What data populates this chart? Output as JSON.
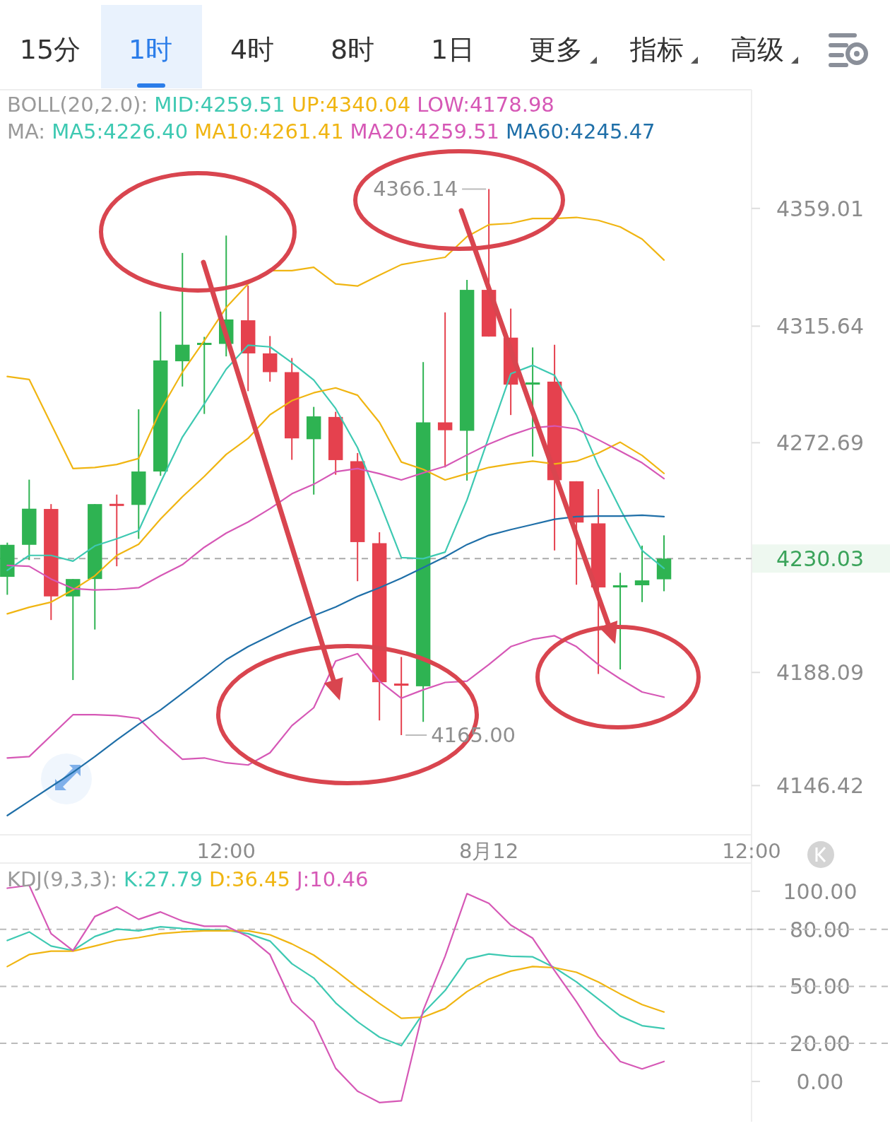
{
  "chart_data": [
    {
      "type": "other",
      "annotations": [
        "15分",
        "1时",
        "4时",
        "8时",
        "1日",
        "更多",
        "指标",
        "高级"
      ]
    },
    {
      "type": "candlestick",
      "x": [
        "--08-11T02:00",
        "--08-11T03:00",
        "--08-11T04:00",
        "--08-11T05:00",
        "--08-11T06:00",
        "--08-11T07:00",
        "--08-11T08:00",
        "--08-11T09:00",
        "--08-11T10:00",
        "--08-11T11:00",
        "--08-11T12:00",
        "--08-11T13:00",
        "--08-11T14:00",
        "--08-11T15:00",
        "--08-11T16:00",
        "--08-11T17:00",
        "--08-11T18:00",
        "--08-11T19:00",
        "--08-11T20:00",
        "--08-11T21:00",
        "--08-11T22:00",
        "--08-11T23:00",
        "--08-12T00:00",
        "--08-12T01:00",
        "--08-12T02:00",
        "--08-12T03:00",
        "--08-12T04:00",
        "--08-12T05:00",
        "--08-12T06:00",
        "--08-12T07:00",
        "--08-12T08:00"
      ],
      "ohlc": [
        [
          4223.3,
          4235.9,
          4216.7,
          4235.1
        ],
        [
          4235.1,
          4259.1,
          4229.5,
          4248.4
        ],
        [
          4248.3,
          4250.1,
          4207.4,
          4216.1
        ],
        [
          4216.1,
          4222.5,
          4185.3,
          4222.5
        ],
        [
          4222.5,
          4250.1,
          4203.9,
          4250.1
        ],
        [
          4250.0,
          4253.6,
          4227.2,
          4249.6
        ],
        [
          4249.8,
          4285.0,
          4237.3,
          4262.1
        ],
        [
          4262.1,
          4321.0,
          4260.5,
          4303.0
        ],
        [
          4302.7,
          4342.6,
          4293.4,
          4308.8
        ],
        [
          4308.9,
          4311.7,
          4283.3,
          4309.3
        ],
        [
          4309.1,
          4349.0,
          4304.5,
          4318.1
        ],
        [
          4317.8,
          4330.6,
          4291.7,
          4305.6
        ],
        [
          4305.6,
          4312.0,
          4295.2,
          4298.7
        ],
        [
          4298.7,
          4303.9,
          4266.4,
          4274.3
        ],
        [
          4274.0,
          4285.9,
          4253.6,
          4282.4
        ],
        [
          4282.2,
          4284.1,
          4260.9,
          4266.3
        ],
        [
          4265.9,
          4268.9,
          4221.7,
          4236.1
        ],
        [
          4235.7,
          4239.7,
          4170.4,
          4184.5
        ],
        [
          4184.0,
          4193.8,
          4165.0,
          4183.2
        ],
        [
          4183.0,
          4302.4,
          4169.9,
          4280.2
        ],
        [
          4280.2,
          4320.7,
          4263.6,
          4277.3
        ],
        [
          4277.1,
          4332.7,
          4258.7,
          4329.0
        ],
        [
          4329.0,
          4366.14,
          4311.8,
          4311.8
        ],
        [
          4311.4,
          4322.1,
          4282.9,
          4294.1
        ],
        [
          4294.1,
          4307.8,
          4267.6,
          4294.9
        ],
        [
          4295.2,
          4308.8,
          4233.0,
          4258.9
        ],
        [
          4258.5,
          4258.5,
          4220.4,
          4243.3
        ],
        [
          4243.0,
          4255.6,
          4187.5,
          4219.4
        ],
        [
          4219.4,
          4224.8,
          4189.2,
          4220.2
        ],
        [
          4220.2,
          4234.8,
          4214.0,
          4222.0
        ],
        [
          4222.4,
          4238.6,
          4218.0,
          4230.03
        ]
      ],
      "colors": [
        "#2eb352",
        "#2eb352",
        "#e5414e",
        "#2eb352",
        "#2eb352",
        "#e5414e",
        "#2eb352",
        "#2eb352",
        "#2eb352",
        "#2eb352",
        "#2eb352",
        "#e5414e",
        "#e5414e",
        "#e5414e",
        "#2eb352",
        "#e5414e",
        "#e5414e",
        "#e5414e",
        "#e5414e",
        "#2eb352",
        "#e5414e",
        "#2eb352",
        "#e5414e",
        "#e5414e",
        "#2eb352",
        "#e5414e",
        "#e5414e",
        "#e5414e",
        "#2eb352",
        "#2eb352",
        "#2eb352"
      ],
      "series": [
        {
          "type": "line",
          "color": "#f0b512",
          "values": [
            4297.1,
            4296.0,
            4279.6,
            4263.2,
            4263.6,
            4264.7,
            4266.9,
            4284.7,
            4298.7,
            4310.3,
            4322.5,
            4331.2,
            4336.1,
            4336.1,
            4337.3,
            4331.2,
            4330.4,
            4334.4,
            4338.3,
            4339.7,
            4341.0,
            4348.6,
            4353.0,
            4353.5,
            4355.3,
            4355.3,
            4355.7,
            4354.6,
            4352.2,
            4347.7,
            4340.0
          ]
        },
        {
          "type": "line",
          "color": "#d658b6",
          "values": [
            4156.6,
            4157.1,
            4164.8,
            4172.5,
            4172.5,
            4172.2,
            4171.2,
            4163.2,
            4156.1,
            4156.6,
            4154.8,
            4154.0,
            4158.5,
            4168.5,
            4175.1,
            4192.3,
            4195.0,
            4184.9,
            4178.6,
            4181.7,
            4184.4,
            4184.9,
            4191.0,
            4197.6,
            4200.3,
            4201.6,
            4197.6,
            4191.0,
            4185.7,
            4180.9,
            4179.0
          ]
        },
        {
          "type": "line",
          "color": "#3ec9b2",
          "values": [
            4225.7,
            4231.2,
            4231.2,
            4229.1,
            4234.7,
            4237.3,
            4240.3,
            4258.0,
            4274.8,
            4287.0,
            4299.8,
            4308.6,
            4308.0,
            4302.2,
            4295.8,
            4285.3,
            4270.9,
            4251.0,
            4230.4,
            4230.0,
            4232.4,
            4251.6,
            4274.9,
            4298.1,
            4301.2,
            4297.5,
            4282.9,
            4264.3,
            4248.3,
            4233.0,
            4226.4
          ]
        },
        {
          "type": "line",
          "color": "#f0b512",
          "values": [
            4209.7,
            4212.1,
            4214.0,
            4218.5,
            4223.7,
            4231.2,
            4235.3,
            4244.6,
            4252.8,
            4260.3,
            4268.4,
            4274.3,
            4283.0,
            4288.2,
            4291.1,
            4292.9,
            4290.2,
            4280.2,
            4265.6,
            4262.9,
            4259.0,
            4261.3,
            4263.6,
            4264.9,
            4265.9,
            4264.9,
            4265.9,
            4268.9,
            4272.9,
            4268.0,
            4261.4
          ]
        },
        {
          "type": "line",
          "color": "#d658b6",
          "values": [
            4227.5,
            4227.2,
            4222.5,
            4219.0,
            4218.5,
            4218.7,
            4219.3,
            4223.7,
            4227.8,
            4234.2,
            4239.4,
            4243.5,
            4248.4,
            4253.9,
            4257.4,
            4262.0,
            4263.2,
            4261.3,
            4259.0,
            4261.6,
            4264.0,
            4268.2,
            4272.2,
            4275.5,
            4278.2,
            4278.9,
            4277.8,
            4273.8,
            4269.6,
            4265.3,
            4259.5
          ]
        },
        {
          "type": "line",
          "color": "#1f6fa8",
          "values": [
            4135.4,
            4140.7,
            4146.0,
            4151.3,
            4157.1,
            4163.2,
            4169.0,
            4174.3,
            4180.4,
            4186.5,
            4192.8,
            4197.6,
            4201.6,
            4205.5,
            4209.0,
            4212.2,
            4216.1,
            4219.3,
            4222.8,
            4226.7,
            4230.7,
            4235.2,
            4238.6,
            4240.7,
            4242.6,
            4244.5,
            4245.5,
            4245.7,
            4245.7,
            4246.0,
            4245.5
          ]
        }
      ],
      "xlim": [
        "--08-11T01:40",
        "--08-12T12:00"
      ],
      "xticks": [
        {
          "value": "--08-11T12:00",
          "label": "12:00"
        },
        {
          "value": "--08-12T00:00",
          "label": "8月12"
        },
        {
          "value": "--08-12T12:00",
          "label": "12:00"
        }
      ],
      "ylim": [
        4128.3,
        4402.7
      ],
      "yticks": [
        4359.01,
        4315.64,
        4272.69,
        4188.09,
        4146.42
      ],
      "ref_lines": [
        {
          "axis": "y",
          "value": 4230.03,
          "label": "4230.03",
          "color": "#aaaaaa",
          "line_style": "dashed"
        }
      ],
      "annotations": [
        "BOLL(20,2.0):",
        "MID:4259.51",
        "UP:4340.04",
        "LOW:4178.98",
        "MA:",
        "MA5:4226.40",
        "MA10:4261.41",
        "MA20:4259.51",
        "MA60:4245.47",
        "4366.14",
        "4165.00"
      ]
    },
    {
      "type": "line",
      "x": [
        "--08-11T02:00",
        "--08-11T03:00",
        "--08-11T04:00",
        "--08-11T05:00",
        "--08-11T06:00",
        "--08-11T07:00",
        "--08-11T08:00",
        "--08-11T09:00",
        "--08-11T10:00",
        "--08-11T11:00",
        "--08-11T12:00",
        "--08-11T13:00",
        "--08-11T14:00",
        "--08-11T15:00",
        "--08-11T16:00",
        "--08-11T17:00",
        "--08-11T18:00",
        "--08-11T19:00",
        "--08-11T20:00",
        "--08-11T21:00",
        "--08-11T22:00",
        "--08-11T23:00",
        "--08-12T00:00",
        "--08-12T01:00",
        "--08-12T02:00",
        "--08-12T03:00",
        "--08-12T04:00",
        "--08-12T05:00",
        "--08-12T06:00",
        "--08-12T07:00",
        "--08-12T08:00"
      ],
      "series": [
        {
          "color": "#3ec9b2",
          "values": [
            74.1,
            78.6,
            71.2,
            68.8,
            76.2,
            80.1,
            79.2,
            81.3,
            80.4,
            79.8,
            79.5,
            77.7,
            73.8,
            61.9,
            54.4,
            41.3,
            31.4,
            23.3,
            18.8,
            35.9,
            47.8,
            64.3,
            67.0,
            65.8,
            65.5,
            59.8,
            52.3,
            43.3,
            34.4,
            29.3,
            27.8
          ]
        },
        {
          "color": "#f0b512",
          "values": [
            60.4,
            66.7,
            68.5,
            68.5,
            71.2,
            74.1,
            75.6,
            77.7,
            78.6,
            79.2,
            79.2,
            79.2,
            77.1,
            72.3,
            66.4,
            58.3,
            49.3,
            41.0,
            33.2,
            33.8,
            38.3,
            47.2,
            53.8,
            58.0,
            60.4,
            59.8,
            57.4,
            52.3,
            46.0,
            40.4,
            36.5
          ]
        },
        {
          "color": "#d658b6",
          "values": [
            101.6,
            103.1,
            77.7,
            68.8,
            86.7,
            91.8,
            85.2,
            89.1,
            84.3,
            81.6,
            81.6,
            76.2,
            66.7,
            41.9,
            31.4,
            6.9,
            -5.1,
            -11.1,
            -10.2,
            37.4,
            65.8,
            98.7,
            93.6,
            82.2,
            75.3,
            58.3,
            41.9,
            23.9,
            10.5,
            6.6,
            10.5
          ]
        }
      ],
      "xlim": [
        "--08-11T01:40",
        "--08-12T12:00"
      ],
      "ylim": [
        -21.2,
        114.8
      ],
      "yticks": [
        {
          "value": 100,
          "label": "100.00"
        },
        {
          "value": 80,
          "label": "80.00"
        },
        {
          "value": 50,
          "label": "50.00"
        },
        {
          "value": 20,
          "label": "20.00"
        },
        {
          "value": 0,
          "label": "0.00"
        }
      ],
      "tick_labels": "y",
      "ref_lines": [
        {
          "axis": "y",
          "value": 80,
          "color": "#bbbbbb",
          "line_style": "dashed"
        },
        {
          "axis": "y",
          "value": 50,
          "color": "#bbbbbb",
          "line_style": "dashed"
        },
        {
          "axis": "y",
          "value": 20,
          "color": "#bbbbbb",
          "line_style": "dashed"
        }
      ],
      "annotations": [
        "KDJ(9,3,3):",
        "K:27.79",
        "D:36.45",
        "J:10.46"
      ]
    }
  ]
}
